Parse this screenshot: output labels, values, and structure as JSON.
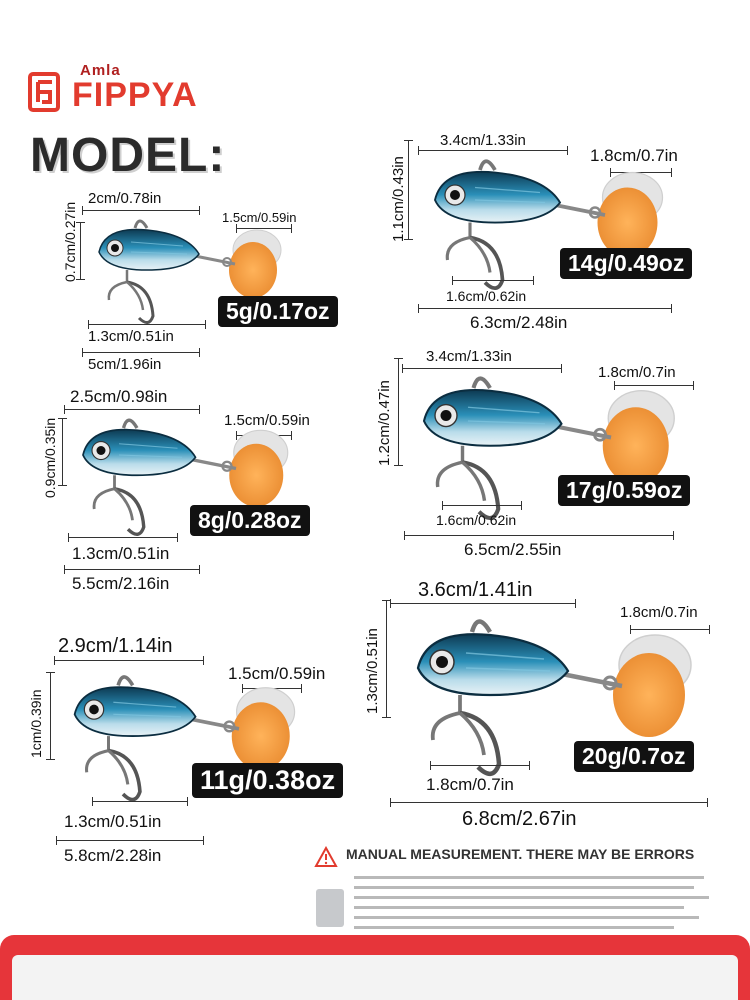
{
  "brand": {
    "sub": "Amla",
    "name": "FIPPYA"
  },
  "title": "MODEL:",
  "colors": {
    "accent_red": "#e6353a",
    "lure_blue": "#1f7fa6",
    "blade_orange": "#f2a24a"
  },
  "models": [
    {
      "weight": "5g/0.17oz",
      "top_len": "2cm/0.78in",
      "height": "0.7cm/0.27in",
      "blade": "1.5cm/0.59in",
      "hook": "1.3cm/0.51in",
      "total": "5cm/1.96in"
    },
    {
      "weight": "8g/0.28oz",
      "top_len": "2.5cm/0.98in",
      "height": "0.9cm/0.35in",
      "blade": "1.5cm/0.59in",
      "hook": "1.3cm/0.51in",
      "total": "5.5cm/2.16in"
    },
    {
      "weight": "11g/0.38oz",
      "top_len": "2.9cm/1.14in",
      "height": "1cm/0.39in",
      "blade": "1.5cm/0.59in",
      "hook": "1.3cm/0.51in",
      "total": "5.8cm/2.28in"
    },
    {
      "weight": "14g/0.49oz",
      "top_len": "3.4cm/1.33in",
      "height": "1.1cm/0.43in",
      "blade": "1.8cm/0.7in",
      "hook": "1.6cm/0.62in",
      "total": "6.3cm/2.48in"
    },
    {
      "weight": "17g/0.59oz",
      "top_len": "3.4cm/1.33in",
      "height": "1.2cm/0.47in",
      "blade": "1.8cm/0.7in",
      "hook": "1.6cm/0.62in",
      "total": "6.5cm/2.55in"
    },
    {
      "weight": "20g/0.7oz",
      "top_len": "3.6cm/1.41in",
      "height": "1.3cm/0.51in",
      "blade": "1.8cm/0.7in",
      "hook": "1.8cm/0.7in",
      "total": "6.8cm/2.67in"
    }
  ],
  "notice": "MANUAL MEASUREMENT.  THERE MAY BE ERRORS"
}
